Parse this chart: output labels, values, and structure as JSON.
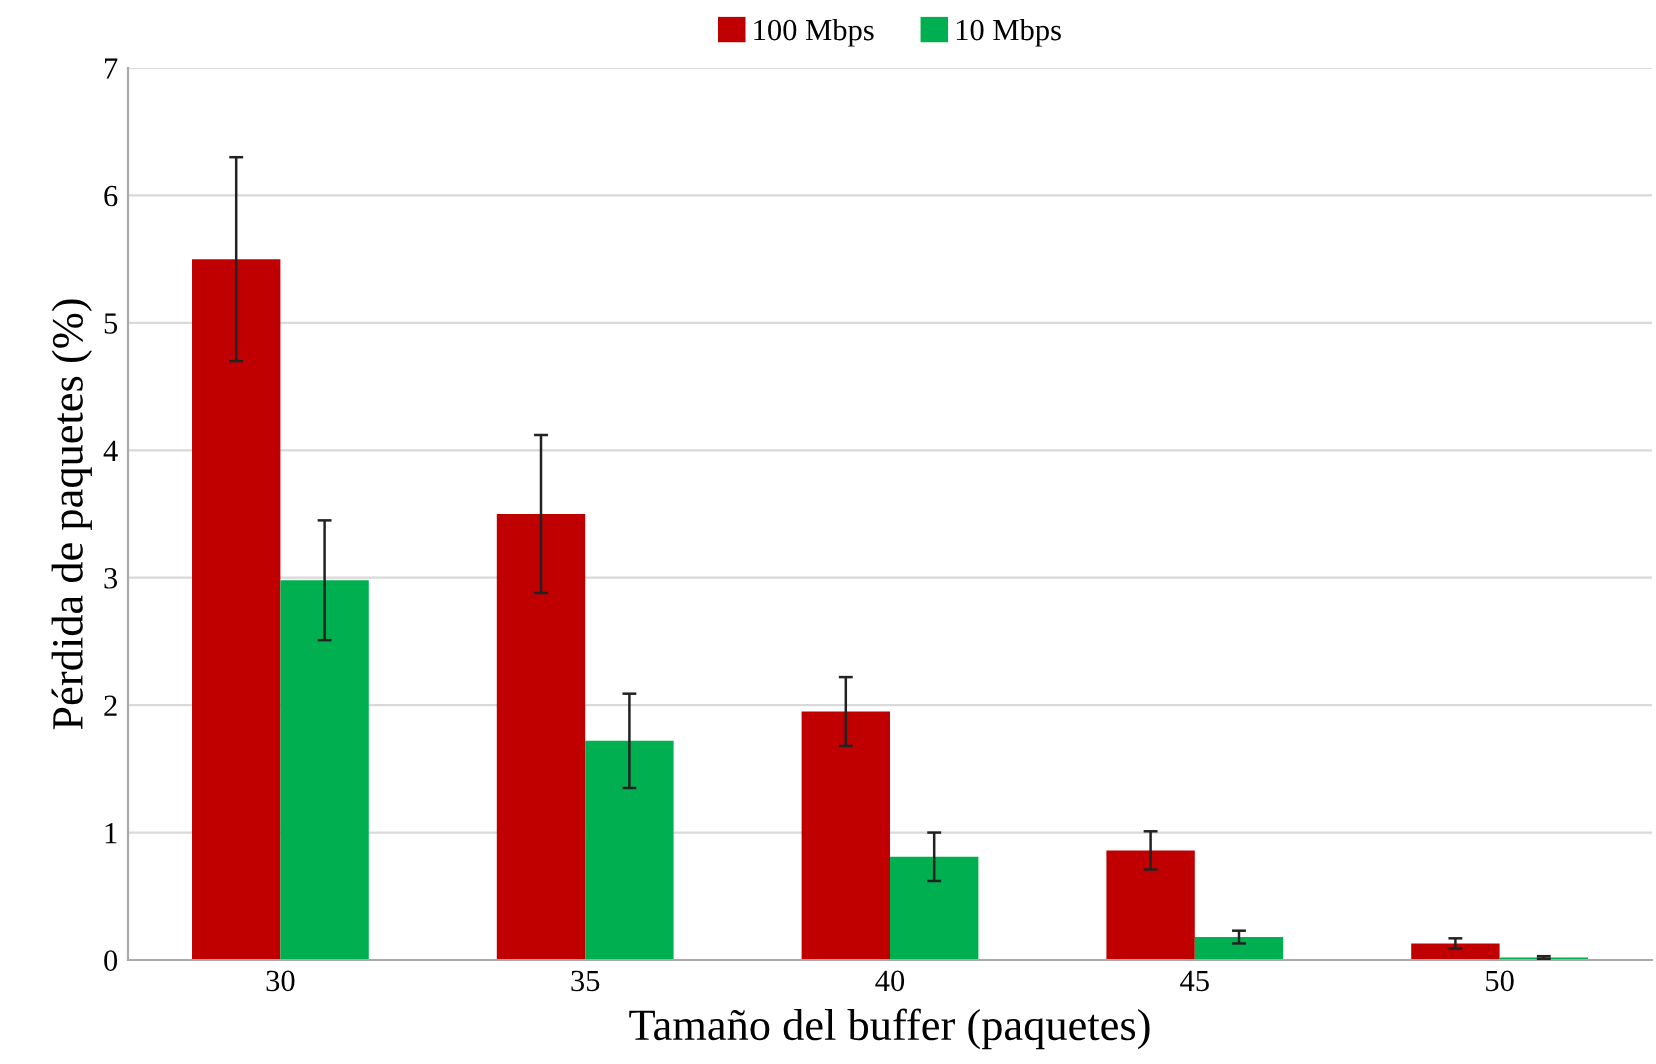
{
  "chart_data": {
    "type": "bar",
    "xlabel": "Tamaño del buffer (paquetes)",
    "ylabel": "Pérdida de paquetes (%)",
    "categories": [
      "30",
      "35",
      "40",
      "45",
      "50"
    ],
    "series": [
      {
        "name": "100 Mbps",
        "color": "#c00000",
        "values": [
          5.5,
          3.5,
          1.95,
          0.86,
          0.13
        ],
        "errors": [
          0.8,
          0.62,
          0.27,
          0.15,
          0.04
        ]
      },
      {
        "name": "10 Mbps",
        "color": "#00b050",
        "values": [
          2.98,
          1.72,
          0.81,
          0.18,
          0.02
        ],
        "errors": [
          0.47,
          0.37,
          0.19,
          0.05,
          0.01
        ]
      }
    ],
    "ylim": [
      0,
      7
    ],
    "yticks": [
      0,
      1,
      2,
      3,
      4,
      5,
      6,
      7
    ],
    "grid": "y",
    "legend": "top"
  }
}
